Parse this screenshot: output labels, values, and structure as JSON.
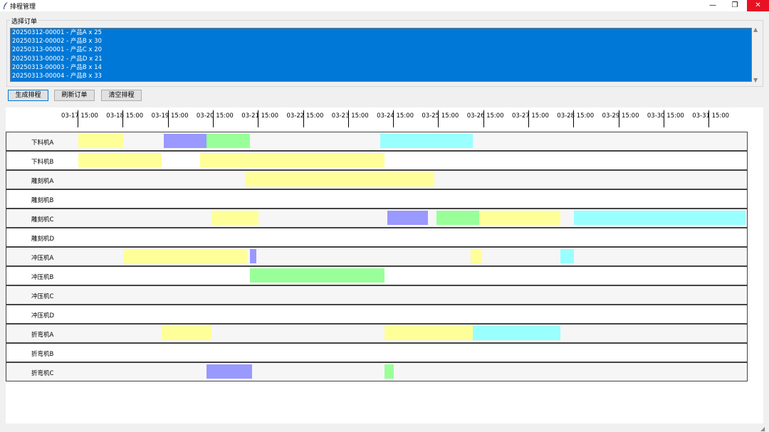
{
  "window": {
    "title": "排程管理",
    "minimize": "—",
    "maximize": "❐",
    "close": "✕"
  },
  "orders": {
    "label": "选择订单",
    "items": [
      "20250312-00001 - 产品A x 25",
      "20250312-00002 - 产品B x 30",
      "20250313-00001 - 产品C x 20",
      "20250313-00002 - 产品D x 21",
      "20250313-00003 - 产品B x 14",
      "20250313-00004 - 产品B x 33"
    ]
  },
  "toolbar": {
    "generate_label": "生成排程",
    "refresh_label": "刷新订单",
    "clear_label": "清空排程"
  },
  "colors": {
    "yellow": "#ffff99",
    "blue": "#9999ff",
    "green": "#99ff99",
    "cyan": "#99ffff"
  },
  "timeline": {
    "start_day": 17,
    "ticks": [
      "03-17 15:00",
      "03-18 15:00",
      "03-19 15:00",
      "03-20 15:00",
      "03-21 15:00",
      "03-22 15:00",
      "03-23 15:00",
      "03-24 15:00",
      "03-25 15:00",
      "03-26 15:00",
      "03-27 15:00",
      "03-28 15:00",
      "03-29 15:00",
      "03-30 15:00",
      "03-31 15:00"
    ]
  },
  "machines": [
    {
      "name": "下料机A",
      "tasks": [
        {
          "start": 0.0,
          "end": 1.0,
          "color": "yellow"
        },
        {
          "start": 1.9,
          "end": 2.85,
          "color": "blue"
        },
        {
          "start": 2.85,
          "end": 3.8,
          "color": "green"
        },
        {
          "start": 6.7,
          "end": 8.75,
          "color": "cyan"
        }
      ]
    },
    {
      "name": "下料机B",
      "tasks": [
        {
          "start": 0.0,
          "end": 1.85,
          "color": "yellow"
        },
        {
          "start": 2.7,
          "end": 6.8,
          "color": "yellow"
        }
      ]
    },
    {
      "name": "雕刻机A",
      "tasks": [
        {
          "start": 3.7,
          "end": 7.9,
          "color": "yellow"
        }
      ]
    },
    {
      "name": "雕刻机B",
      "tasks": []
    },
    {
      "name": "雕刻机C",
      "tasks": [
        {
          "start": 2.95,
          "end": 4.0,
          "color": "yellow"
        },
        {
          "start": 6.85,
          "end": 7.75,
          "color": "blue"
        },
        {
          "start": 7.95,
          "end": 8.9,
          "color": "green"
        },
        {
          "start": 8.9,
          "end": 10.7,
          "color": "yellow"
        },
        {
          "start": 11.0,
          "end": 14.8,
          "color": "cyan"
        }
      ]
    },
    {
      "name": "雕刻机D",
      "tasks": []
    },
    {
      "name": "冲压机A",
      "tasks": [
        {
          "start": 1.0,
          "end": 3.75,
          "color": "yellow"
        },
        {
          "start": 3.8,
          "end": 3.95,
          "color": "blue"
        },
        {
          "start": 8.7,
          "end": 8.95,
          "color": "yellow"
        },
        {
          "start": 10.7,
          "end": 11.0,
          "color": "cyan"
        }
      ]
    },
    {
      "name": "冲压机B",
      "tasks": [
        {
          "start": 3.8,
          "end": 6.8,
          "color": "green"
        }
      ]
    },
    {
      "name": "冲压机C",
      "tasks": []
    },
    {
      "name": "冲压机D",
      "tasks": []
    },
    {
      "name": "折弯机A",
      "tasks": [
        {
          "start": 1.85,
          "end": 2.95,
          "color": "yellow"
        },
        {
          "start": 6.8,
          "end": 8.75,
          "color": "yellow"
        },
        {
          "start": 8.75,
          "end": 10.7,
          "color": "cyan"
        }
      ]
    },
    {
      "name": "折弯机B",
      "tasks": []
    },
    {
      "name": "折弯机C",
      "tasks": [
        {
          "start": 2.85,
          "end": 3.85,
          "color": "blue"
        },
        {
          "start": 6.8,
          "end": 7.0,
          "color": "green"
        }
      ]
    }
  ]
}
